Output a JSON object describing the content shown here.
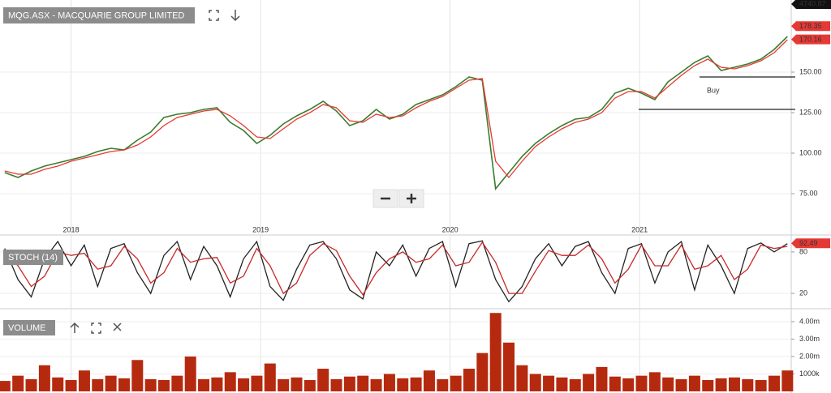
{
  "chart_data": [
    {
      "type": "line",
      "title": "MQG.ASX - MACQUARIE GROUP LIMITED",
      "x": [
        2017.65,
        2017.72,
        2017.79,
        2017.86,
        2017.93,
        2018.0,
        2018.07,
        2018.14,
        2018.21,
        2018.28,
        2018.35,
        2018.42,
        2018.49,
        2018.56,
        2018.63,
        2018.7,
        2018.77,
        2018.84,
        2018.91,
        2018.98,
        2019.05,
        2019.12,
        2019.19,
        2019.26,
        2019.33,
        2019.4,
        2019.47,
        2019.54,
        2019.61,
        2019.68,
        2019.75,
        2019.82,
        2019.89,
        2019.96,
        2020.03,
        2020.1,
        2020.17,
        2020.24,
        2020.31,
        2020.38,
        2020.45,
        2020.52,
        2020.59,
        2020.66,
        2020.73,
        2020.8,
        2020.87,
        2020.94,
        2021.01,
        2021.08,
        2021.15,
        2021.22,
        2021.29,
        2021.36,
        2021.43,
        2021.5,
        2021.57,
        2021.64,
        2021.71,
        2021.78
      ],
      "series": [
        {
          "color": "#3a7d2c",
          "values": [
            88,
            85,
            89,
            92,
            94,
            96,
            98,
            101,
            103,
            102,
            108,
            113,
            122,
            124,
            125,
            127,
            128,
            119,
            114,
            106,
            111,
            118,
            123,
            127,
            132,
            126,
            117,
            120,
            127,
            121,
            124,
            130,
            133,
            136,
            141,
            147,
            145,
            78,
            88,
            98,
            106,
            112,
            117,
            121,
            122,
            127,
            137,
            140,
            137,
            133,
            144,
            150,
            156,
            160,
            151,
            153,
            155,
            158,
            164,
            172
          ]
        },
        {
          "color": "#e53935",
          "values": [
            89,
            87,
            87,
            90,
            92,
            95,
            97,
            99,
            101,
            102,
            105,
            110,
            117,
            122,
            124,
            126,
            127,
            123,
            117,
            110,
            109,
            115,
            121,
            125,
            130,
            128,
            120,
            119,
            124,
            122,
            123,
            128,
            132,
            135,
            140,
            145,
            146,
            95,
            85,
            95,
            104,
            110,
            115,
            119,
            121,
            125,
            134,
            138,
            138,
            134,
            141,
            148,
            154,
            158,
            153,
            152,
            154,
            157,
            162,
            170
          ]
        }
      ],
      "xlim": [
        2017.625,
        2021.8
      ],
      "xticks": [
        2018,
        2019,
        2020,
        2021
      ],
      "ylim": [
        55.5,
        194.5
      ],
      "yticks": [
        {
          "value": 75,
          "label": "75.00"
        },
        {
          "value": 100,
          "label": "100.00"
        },
        {
          "value": 125,
          "label": "125.00"
        },
        {
          "value": 150,
          "label": "150.00"
        }
      ],
      "price_tags": [
        178.35,
        170.16
      ],
      "index_tag": "4740.87",
      "levels": [
        147,
        127
      ],
      "annotation": "Buy",
      "grid": true
    },
    {
      "type": "line",
      "title": "STOCH (14)",
      "series": [
        {
          "color": "#222222",
          "values": [
            85,
            40,
            15,
            70,
            95,
            60,
            90,
            30,
            85,
            92,
            50,
            20,
            75,
            95,
            40,
            88,
            60,
            15,
            70,
            95,
            30,
            10,
            55,
            90,
            95,
            70,
            25,
            12,
            80,
            60,
            90,
            45,
            85,
            95,
            30,
            92,
            96,
            40,
            8,
            30,
            70,
            92,
            60,
            88,
            95,
            50,
            20,
            85,
            92,
            35,
            80,
            95,
            25,
            90,
            60,
            20,
            85,
            93,
            80,
            92
          ]
        },
        {
          "color": "#c62828",
          "values": [
            80,
            60,
            30,
            45,
            80,
            75,
            78,
            55,
            60,
            88,
            70,
            35,
            50,
            85,
            65,
            70,
            72,
            35,
            45,
            85,
            60,
            20,
            35,
            75,
            92,
            82,
            45,
            18,
            50,
            70,
            80,
            65,
            70,
            90,
            60,
            65,
            94,
            65,
            20,
            20,
            52,
            82,
            75,
            75,
            90,
            70,
            35,
            55,
            90,
            60,
            60,
            90,
            55,
            60,
            75,
            40,
            55,
            90,
            85,
            88
          ]
        }
      ],
      "ylim": [
        -1,
        101
      ],
      "yticks": [
        20,
        80
      ],
      "price_tags": [
        92.49
      ],
      "grid": true
    },
    {
      "type": "bar",
      "title": "VOLUME",
      "color": "#b52a0f",
      "values": [
        600000,
        900000,
        700000,
        1500000,
        800000,
        650000,
        1200000,
        700000,
        900000,
        750000,
        1800000,
        700000,
        650000,
        900000,
        2000000,
        700000,
        800000,
        1100000,
        750000,
        900000,
        1600000,
        700000,
        800000,
        650000,
        1300000,
        700000,
        850000,
        900000,
        700000,
        1000000,
        750000,
        800000,
        1200000,
        700000,
        900000,
        1300000,
        2200000,
        4500000,
        2800000,
        1500000,
        1000000,
        900000,
        800000,
        700000,
        1000000,
        1400000,
        850000,
        750000,
        900000,
        1100000,
        800000,
        700000,
        900000,
        650000,
        750000,
        800000,
        700000,
        650000,
        900000,
        1200000
      ],
      "ylim": [
        0,
        4650000
      ],
      "yticks": [
        {
          "value": 1000000,
          "label": "1000k"
        },
        {
          "value": 2000000,
          "label": "2.00m"
        },
        {
          "value": 3000000,
          "label": "3.00m"
        },
        {
          "value": 4000000,
          "label": "4.00m"
        }
      ],
      "grid": true
    }
  ]
}
